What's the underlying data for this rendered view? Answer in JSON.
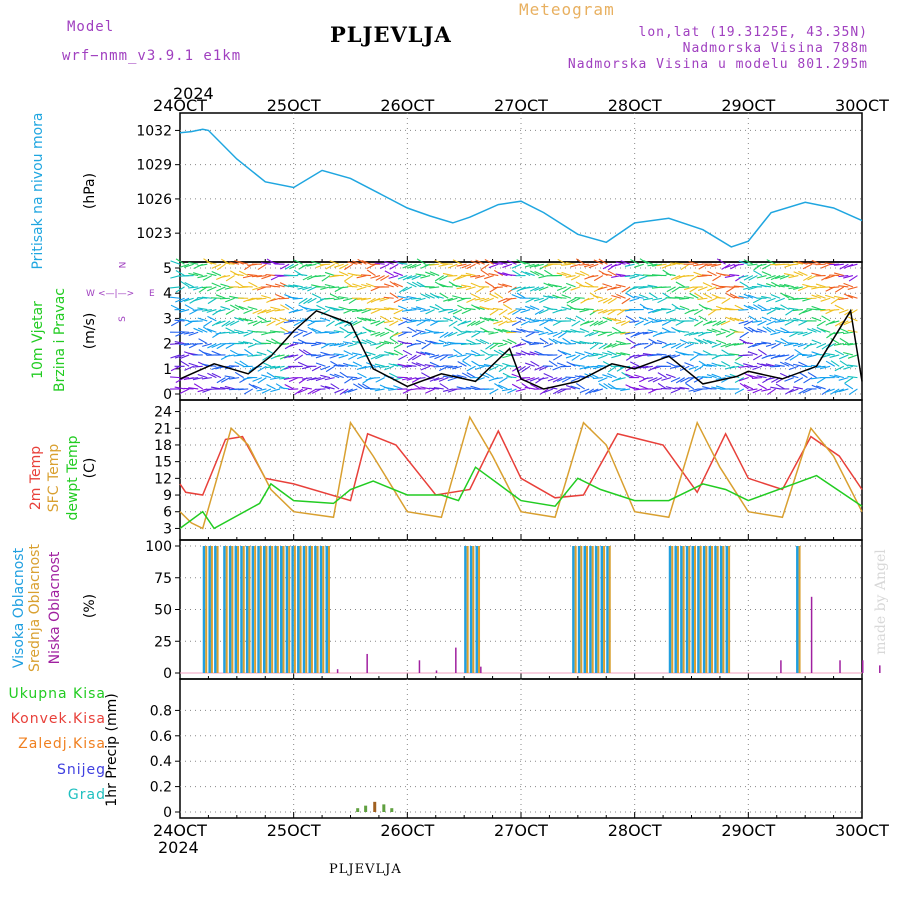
{
  "header": {
    "model_label": "Model",
    "model_name": "wrf−nmm_v3.9.1 e1km",
    "title": "PLJEVLJA",
    "meteogram": "Meteogram",
    "lonlat": "lon,lat (19.3125E, 43.35N)",
    "elev": "Nadmorska Visina 788m",
    "model_elev": "Nadmorska Visina u modelu 801.295m",
    "year_top": "2024",
    "year_bottom": "2024",
    "footer_title": "PLJEVLJA",
    "credit": "made by Angel"
  },
  "colors": {
    "pressure": "#1fa6e0",
    "temp2m": "#e8403a",
    "sfc": "#d9a030",
    "dewpt": "#22cc22",
    "high": "#1f9fe0",
    "mid": "#d9a030",
    "low": "#a020a0",
    "ukupna": "#22cc22",
    "konvek": "#e8403a",
    "zaledj": "#f08020",
    "snijeg": "#4040e0",
    "grad": "#20c0c0",
    "header_purple": "#a040c0",
    "header_gold": "#e8b060"
  },
  "panel_labels": {
    "pressure": [
      "Pritisak na nivou mora",
      "(hPa)"
    ],
    "wind": [
      "10m Vjetar",
      "Brzina i Pravac",
      "(m/s)"
    ],
    "wind_compass": {
      "n": "N",
      "s": "S",
      "w": "W",
      "e": "E",
      "arrow": "<—|—>"
    },
    "temp": [
      "2m Temp",
      "SFC Temp",
      "dewpt Temp",
      "(C)"
    ],
    "cloud": [
      "Visoka Oblacnost",
      "Srednja Oblacnost",
      "Niska Oblacnost",
      "(%)"
    ],
    "precip": [
      "Ukupna Kisa",
      "Konvek.Kisa",
      "Zaledj.Kisa",
      "Snijeg",
      "Grad"
    ],
    "precip_axis": "1hr Precip (mm)"
  },
  "chart_data": [
    {
      "type": "line",
      "name": "pressure",
      "x_labels": [
        "24OCT",
        "25OCT",
        "26OCT",
        "27OCT",
        "28OCT",
        "29OCT",
        "30OCT"
      ],
      "ylim": [
        1021,
        1033
      ],
      "yticks": [
        1023,
        1026,
        1029,
        1032
      ],
      "grid": true,
      "series": [
        {
          "name": "",
          "x": [
            0,
            0.1,
            0.2,
            0.25,
            0.5,
            0.75,
            1.0,
            1.25,
            1.5,
            1.75,
            2.0,
            2.2,
            2.4,
            2.55,
            2.8,
            3.0,
            3.2,
            3.5,
            3.75,
            4.0,
            4.3,
            4.6,
            4.85,
            5.0,
            5.2,
            5.5,
            5.75,
            6.0
          ],
          "values": [
            1031.8,
            1031.9,
            1032.1,
            1032.0,
            1029.5,
            1027.5,
            1027.0,
            1028.5,
            1027.8,
            1026.5,
            1025.2,
            1024.5,
            1023.9,
            1024.4,
            1025.5,
            1025.8,
            1024.8,
            1022.9,
            1022.2,
            1023.9,
            1024.3,
            1023.3,
            1021.8,
            1022.3,
            1024.8,
            1025.7,
            1025.2,
            1024.1
          ]
        }
      ]
    },
    {
      "type": "line",
      "name": "wind",
      "ylim": [
        0,
        5
      ],
      "yticks": [
        0,
        1,
        2,
        3,
        4,
        5
      ],
      "series": [
        {
          "name": "",
          "x": [
            0,
            0.3,
            0.6,
            0.8,
            1.0,
            1.2,
            1.5,
            1.7,
            2.0,
            2.3,
            2.6,
            2.9,
            3.0,
            3.2,
            3.5,
            3.8,
            4.0,
            4.3,
            4.6,
            4.9,
            5.0,
            5.3,
            5.6,
            5.9,
            6.0
          ],
          "values": [
            0.6,
            1.2,
            0.8,
            1.5,
            2.5,
            3.3,
            2.8,
            1.0,
            0.3,
            0.8,
            0.5,
            1.8,
            0.6,
            0.2,
            0.5,
            1.2,
            1.0,
            1.5,
            0.4,
            0.7,
            0.9,
            0.6,
            1.1,
            3.3,
            0.5
          ]
        }
      ]
    },
    {
      "type": "line",
      "name": "temperature",
      "ylim": [
        2,
        25
      ],
      "yticks": [
        3,
        6,
        9,
        12,
        15,
        18,
        21,
        24
      ],
      "series": [
        {
          "name": "2m Temp",
          "x": [
            0,
            0.05,
            0.2,
            0.4,
            0.55,
            0.75,
            1.0,
            1.5,
            1.65,
            1.9,
            2.25,
            2.55,
            2.8,
            3.0,
            3.3,
            3.55,
            3.85,
            4.25,
            4.55,
            4.8,
            5.0,
            5.3,
            5.55,
            5.8,
            6.0
          ],
          "values": [
            11,
            9.5,
            9,
            19,
            19.5,
            12,
            11,
            8,
            20,
            18,
            9,
            10,
            20.5,
            12,
            8.5,
            9,
            20,
            18,
            9.5,
            20,
            12,
            10,
            19.5,
            16,
            10
          ]
        },
        {
          "name": "SFC Temp",
          "x": [
            0,
            0.1,
            0.2,
            0.45,
            0.6,
            0.8,
            1.0,
            1.35,
            1.5,
            1.7,
            2.0,
            2.3,
            2.55,
            2.75,
            3.0,
            3.3,
            3.55,
            3.75,
            4.0,
            4.3,
            4.55,
            4.75,
            5.0,
            5.3,
            5.55,
            5.75,
            6.0
          ],
          "values": [
            6,
            4,
            3,
            21,
            18,
            10,
            6,
            5,
            22,
            16,
            6,
            5,
            23,
            16,
            6,
            5,
            22,
            18,
            6,
            5,
            22,
            14,
            6,
            5,
            21,
            16,
            6
          ]
        },
        {
          "name": "dewpt Temp",
          "x": [
            0,
            0.2,
            0.3,
            0.7,
            0.8,
            1.0,
            1.35,
            1.5,
            1.7,
            2.0,
            2.3,
            2.45,
            2.6,
            2.8,
            3.0,
            3.3,
            3.5,
            3.7,
            4.0,
            4.3,
            4.6,
            4.8,
            5.0,
            5.4,
            5.6,
            6.0
          ],
          "values": [
            3,
            6,
            3,
            7.5,
            11,
            8,
            7.5,
            10,
            11.5,
            9,
            9,
            8,
            14,
            11,
            8,
            7,
            12,
            10,
            8,
            8,
            11,
            10,
            8,
            11,
            12.5,
            7
          ]
        }
      ]
    },
    {
      "type": "bar",
      "name": "cloud",
      "ylim": [
        0,
        100
      ],
      "yticks": [
        0,
        25,
        50,
        75,
        100
      ],
      "series": [
        {
          "name": "Visoka Oblacnost",
          "ranges": [
            [
              0.2,
              0.3
            ],
            [
              0.38,
              1.3
            ],
            [
              2.5,
              2.6
            ],
            [
              3.45,
              3.75
            ],
            [
              4.3,
              4.8
            ],
            [
              5.42,
              5.45
            ]
          ],
          "value": 100
        },
        {
          "name": "Srednja Oblacnost",
          "ranges": [
            [
              0.2,
              0.3
            ],
            [
              0.38,
              1.3
            ],
            [
              2.5,
              2.6
            ],
            [
              3.45,
              3.75
            ],
            [
              4.3,
              4.8
            ],
            [
              5.42,
              5.45
            ]
          ],
          "value": 100
        },
        {
          "name": "Niska Oblacnost",
          "x": [
            1.38,
            1.64,
            2.1,
            2.25,
            2.42,
            2.64,
            5.28,
            5.55,
            5.8,
            6.0,
            6.15
          ],
          "values": [
            3,
            15,
            10,
            2,
            20,
            5,
            10,
            60,
            10,
            10,
            6
          ]
        }
      ]
    },
    {
      "type": "bar",
      "name": "precip",
      "ylim": [
        0,
        1.0
      ],
      "yticks": [
        0,
        0.2,
        0.4,
        0.6,
        0.8
      ],
      "series": [
        {
          "name": "Ukupna Kisa",
          "x": [
            1.55,
            1.62,
            1.7,
            1.78,
            1.85
          ],
          "values": [
            0.03,
            0.05,
            0.08,
            0.06,
            0.03
          ]
        }
      ]
    }
  ]
}
